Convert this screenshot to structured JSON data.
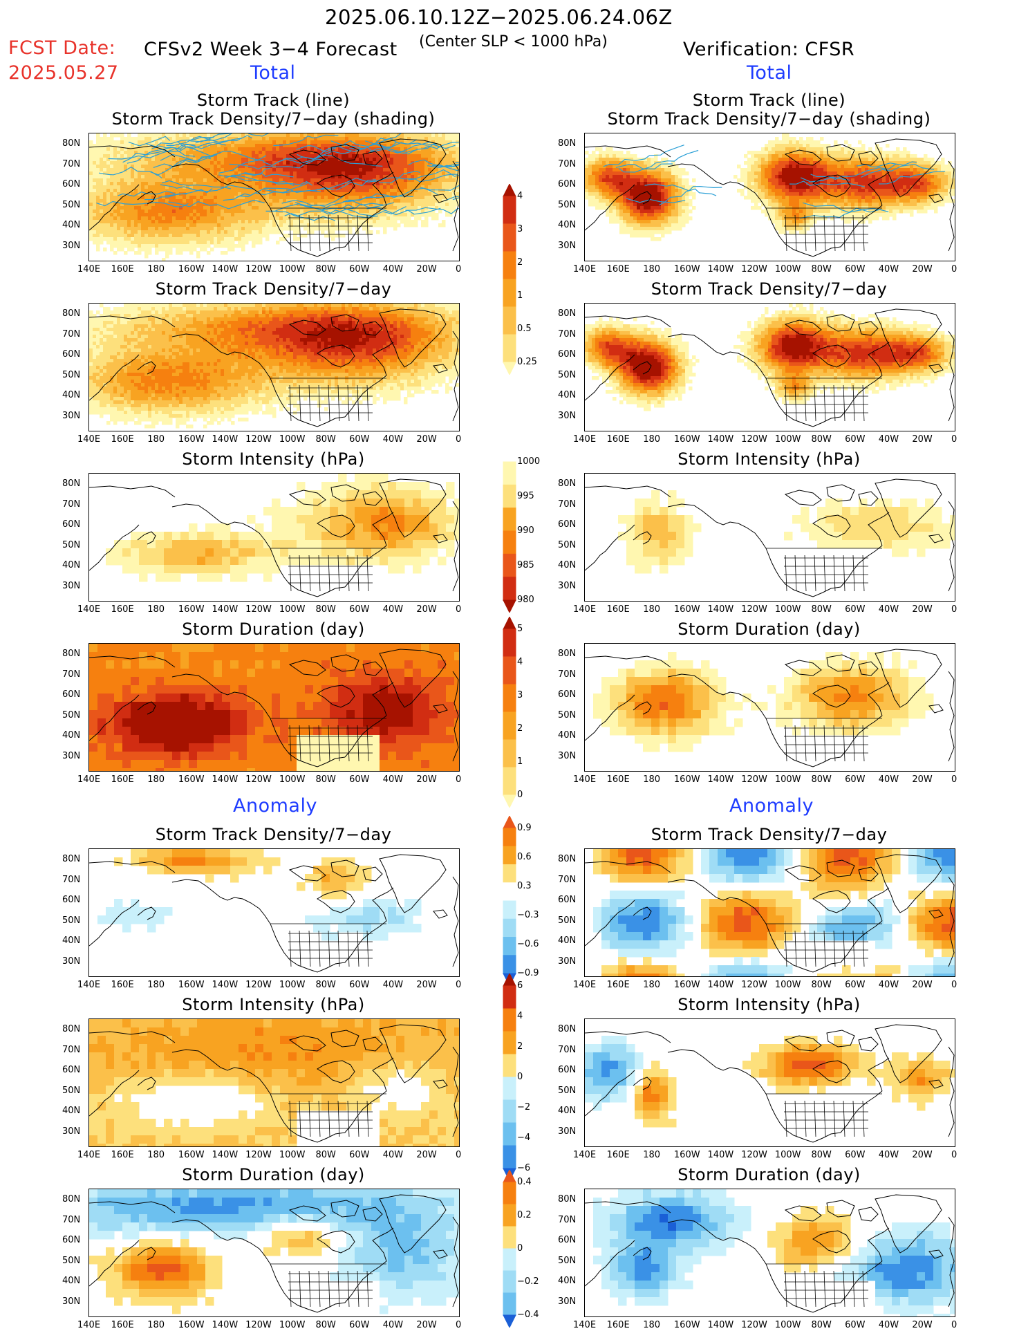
{
  "header": {
    "period": "2025.06.10.12Z−2025.06.24.06Z",
    "fcst_label": "FCST Date:",
    "fcst_date": "2025.05.27",
    "model_title": "CFSv2 Week 3−4 Forecast",
    "criterion": "(Center SLP < 1000 hPa)",
    "verification": "Verification: CFSR"
  },
  "sections": {
    "total_left": "Total",
    "total_right": "Total",
    "anom_left": "Anomaly",
    "anom_right": "Anomaly"
  },
  "panel_titles": {
    "track_line": "Storm Track (line)",
    "track_density_shading": "Storm Track Density/7−day (shading)",
    "density": "Storm Track Density/7−day",
    "intensity": "Storm Intensity (hPa)",
    "duration": "Storm Duration (day)"
  },
  "axes": {
    "lat_labels": [
      "80N",
      "70N",
      "60N",
      "50N",
      "40N",
      "30N"
    ],
    "lon_labels": [
      "140E",
      "160E",
      "180",
      "160W",
      "140W",
      "120W",
      "100W",
      "80W",
      "60W",
      "40W",
      "20W",
      "0"
    ]
  },
  "colorbars": {
    "density_total": [
      "4",
      "3",
      "2",
      "1",
      "0.5",
      "0.25"
    ],
    "intensity_total": [
      "1000",
      "995",
      "990",
      "985",
      "980"
    ],
    "duration_total": [
      "5",
      "4",
      "3",
      "2",
      "1",
      "0"
    ],
    "density_anom": [
      "0.9",
      "0.6",
      "0.3",
      "−0.3",
      "−0.6",
      "−0.9"
    ],
    "intensity_anom": [
      "6",
      "4",
      "2",
      "0",
      "−2",
      "−4",
      "−6"
    ],
    "duration_anom": [
      "0.4",
      "0.2",
      "0",
      "−0.2",
      "−0.4"
    ]
  },
  "colors": {
    "warm": [
      "#fff7b0",
      "#fde07c",
      "#fbc04a",
      "#f8a321",
      "#f6800f",
      "#e9561a",
      "#d12d12",
      "#a61200"
    ],
    "cool": [
      "#c9f0fb",
      "#9fdcf5",
      "#6cc0ef",
      "#3a91e6",
      "#1a5fd6"
    ],
    "outline": "#000000",
    "track_lines": "#2a9fd6"
  }
}
